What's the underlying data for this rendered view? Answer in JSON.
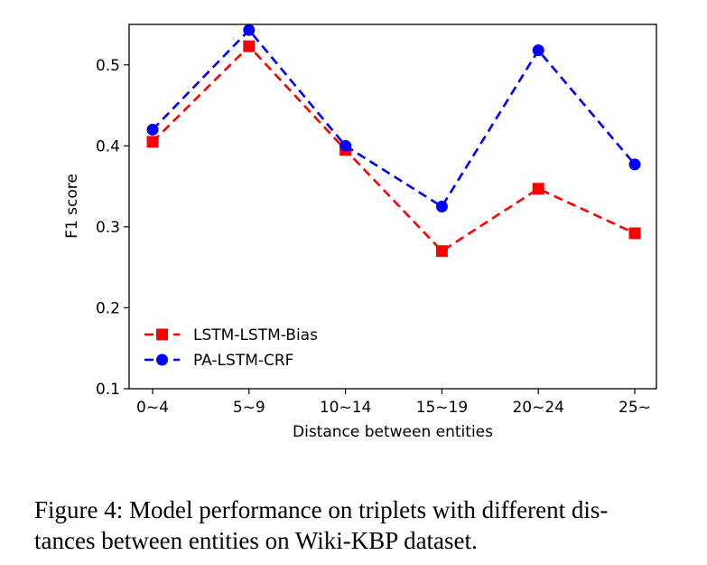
{
  "chart_data": {
    "type": "line",
    "categories": [
      "0~4",
      "5~9",
      "10~14",
      "15~19",
      "20~24",
      "25~"
    ],
    "series": [
      {
        "name": "LSTM-LSTM-Bias",
        "values": [
          0.405,
          0.523,
          0.395,
          0.27,
          0.347,
          0.292
        ],
        "color": "#ff0000",
        "marker": "square",
        "linestyle": "dashed"
      },
      {
        "name": "PA-LSTM-CRF",
        "values": [
          0.42,
          0.543,
          0.4,
          0.325,
          0.518,
          0.377
        ],
        "color": "#0000ff",
        "marker": "circle",
        "linestyle": "dashed"
      }
    ],
    "xlabel": "Distance between entities",
    "ylabel": "F1 score",
    "ylim": [
      0.1,
      0.55
    ],
    "yticks": [
      "0.1",
      "0.2",
      "0.3",
      "0.4",
      "0.5"
    ],
    "grid": false,
    "legend_position": "lower-left"
  },
  "caption": "Figure 4: Model performance on triplets with different distances between entities on Wiki-KBP dataset."
}
